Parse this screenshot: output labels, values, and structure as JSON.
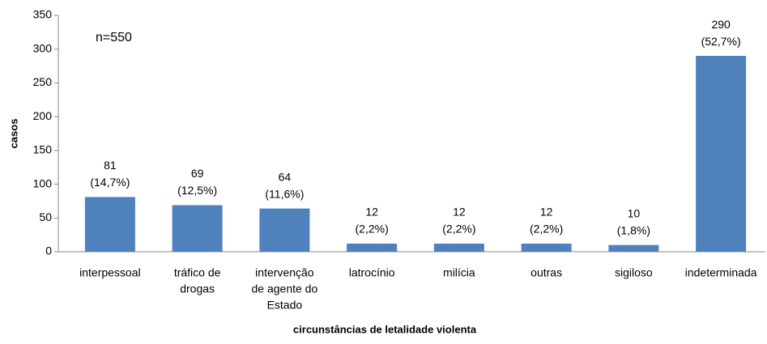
{
  "chart_data": {
    "type": "bar",
    "xlabel": "circunstâncias de letalidade violenta",
    "ylabel": "casos",
    "annotation": "n=550",
    "categories": [
      [
        "interpessoal"
      ],
      [
        "tráfico de",
        "drogas"
      ],
      [
        "intervenção",
        "de agente do",
        "Estado"
      ],
      [
        "latrocínio"
      ],
      [
        "milícia"
      ],
      [
        "outras"
      ],
      [
        "sigiloso"
      ],
      [
        "indeterminada"
      ]
    ],
    "values": [
      81,
      69,
      64,
      12,
      12,
      12,
      10,
      290
    ],
    "shares": [
      "(14,7%)",
      "(12,5%)",
      "(11,6%)",
      "(2,2%)",
      "(2,2%)",
      "(2,2%)",
      "(1,8%)",
      "(52,7%)"
    ],
    "color": "#4f81bd",
    "ylim": [
      0,
      350
    ],
    "yticks": [
      0,
      50,
      100,
      150,
      200,
      250,
      300,
      350
    ],
    "grid": false
  }
}
